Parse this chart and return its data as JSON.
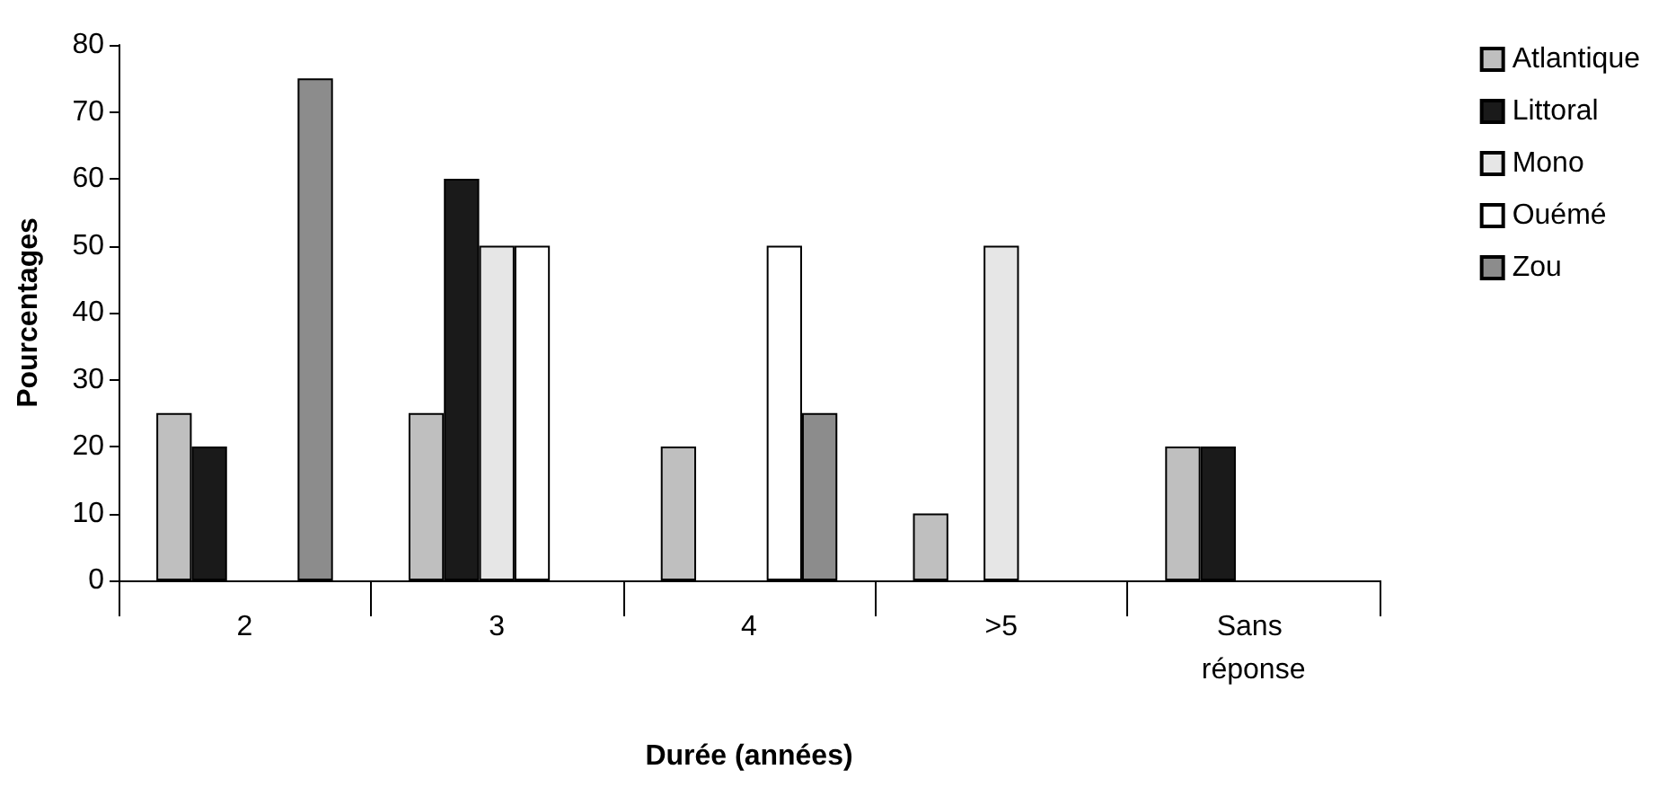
{
  "chart_data": {
    "type": "bar",
    "xlabel": "Durée (années)",
    "ylabel": "Pourcentages",
    "categories": [
      "2",
      "3",
      "4",
      ">5",
      "Sans réponse"
    ],
    "series": [
      {
        "name": "Atlantique",
        "color": "#bfbfbf",
        "values": [
          25,
          25,
          20,
          10,
          20
        ]
      },
      {
        "name": "Littoral",
        "color": "#1a1a1a",
        "values": [
          20,
          60,
          null,
          null,
          20
        ]
      },
      {
        "name": "Mono",
        "color": "#e6e6e6",
        "values": [
          null,
          50,
          null,
          50,
          null
        ]
      },
      {
        "name": "Ouémé",
        "color": "#ffffff",
        "values": [
          null,
          50,
          50,
          null,
          null
        ]
      },
      {
        "name": "Zou",
        "color": "#8c8c8c",
        "values": [
          75,
          null,
          25,
          null,
          null
        ]
      }
    ],
    "ylim": [
      0,
      80
    ],
    "yticks": [
      0,
      10,
      20,
      30,
      40,
      50,
      60,
      70,
      80
    ],
    "grid": false,
    "legend": "right"
  }
}
